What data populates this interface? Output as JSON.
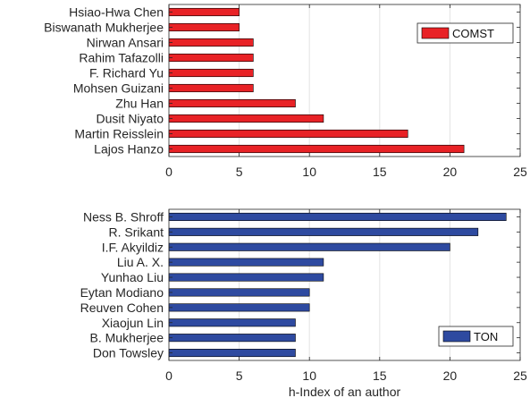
{
  "chart_data": [
    {
      "type": "bar",
      "orientation": "horizontal",
      "categories": [
        "Hsiao-Hwa Chen",
        "Biswanath Mukherjee",
        "Nirwan Ansari",
        "Rahim Tafazolli",
        "F. Richard Yu",
        "Mohsen Guizani",
        "Zhu Han",
        "Dusit Niyato",
        "Martin Reisslein",
        "Lajos Hanzo"
      ],
      "series": [
        {
          "name": "COMST",
          "values": [
            5,
            5,
            6,
            6,
            6,
            6,
            9,
            11,
            17,
            21
          ],
          "color": "#e82226"
        }
      ],
      "xlim": [
        0,
        25
      ],
      "xticks": [
        0,
        5,
        10,
        15,
        20,
        25
      ],
      "xlabel": "",
      "grid": "vertical",
      "legend": "top-right"
    },
    {
      "type": "bar",
      "orientation": "horizontal",
      "categories": [
        "Ness B. Shroff",
        "R. Srikant",
        "I.F. Akyildiz",
        "Liu A. X.",
        "Yunhao Liu",
        "Eytan Modiano",
        "Reuven Cohen",
        "Xiaojun Lin",
        "B. Mukherjee",
        "Don Towsley"
      ],
      "series": [
        {
          "name": "TON",
          "values": [
            24,
            22,
            20,
            11,
            11,
            10,
            10,
            9,
            9,
            9
          ],
          "color": "#2e4aa0"
        }
      ],
      "xlim": [
        0,
        25
      ],
      "xticks": [
        0,
        5,
        10,
        15,
        20,
        25
      ],
      "xlabel": "h-Index of an author",
      "grid": "vertical",
      "legend": "bottom-right"
    }
  ]
}
